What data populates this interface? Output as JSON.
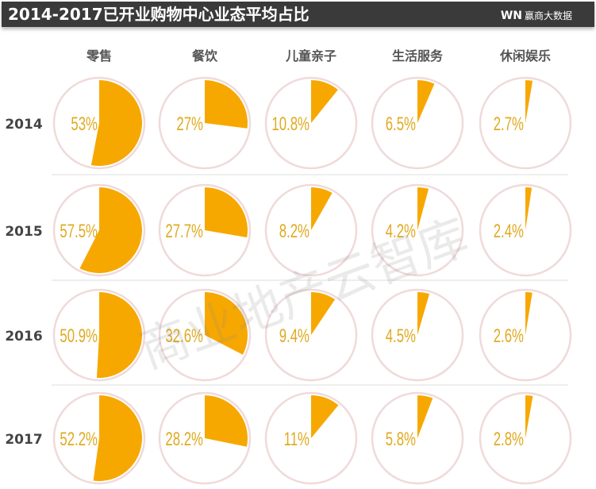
{
  "header": {
    "title": "2014-2017已开业购物中心业态平均占比",
    "logo_mark": "WN",
    "logo_text": "赢商大数据"
  },
  "watermark": "商业地产云智库",
  "colors": {
    "slice": "#f7a800",
    "label": "#e0aa20",
    "ring": "#f0dada"
  },
  "chart_data": {
    "type": "pie",
    "categories": [
      "零售",
      "餐饮",
      "儿童亲子",
      "生活服务",
      "休闲娱乐"
    ],
    "years": [
      "2014",
      "2015",
      "2016",
      "2017"
    ],
    "values": [
      [
        53,
        27,
        10.8,
        6.5,
        2.7
      ],
      [
        57.5,
        27.7,
        8.2,
        4.2,
        2.4
      ],
      [
        50.9,
        32.6,
        9.4,
        4.5,
        2.6
      ],
      [
        52.2,
        28.2,
        11,
        5.8,
        2.8
      ]
    ],
    "labels": [
      [
        "53%",
        "27%",
        "10.8%",
        "6.5%",
        "2.7%"
      ],
      [
        "57.5%",
        "27.7%",
        "8.2%",
        "4.2%",
        "2.4%"
      ],
      [
        "50.9%",
        "32.6%",
        "9.4%",
        "4.5%",
        "2.6%"
      ],
      [
        "52.2%",
        "28.2%",
        "11%",
        "5.8%",
        "2.8%"
      ]
    ]
  }
}
